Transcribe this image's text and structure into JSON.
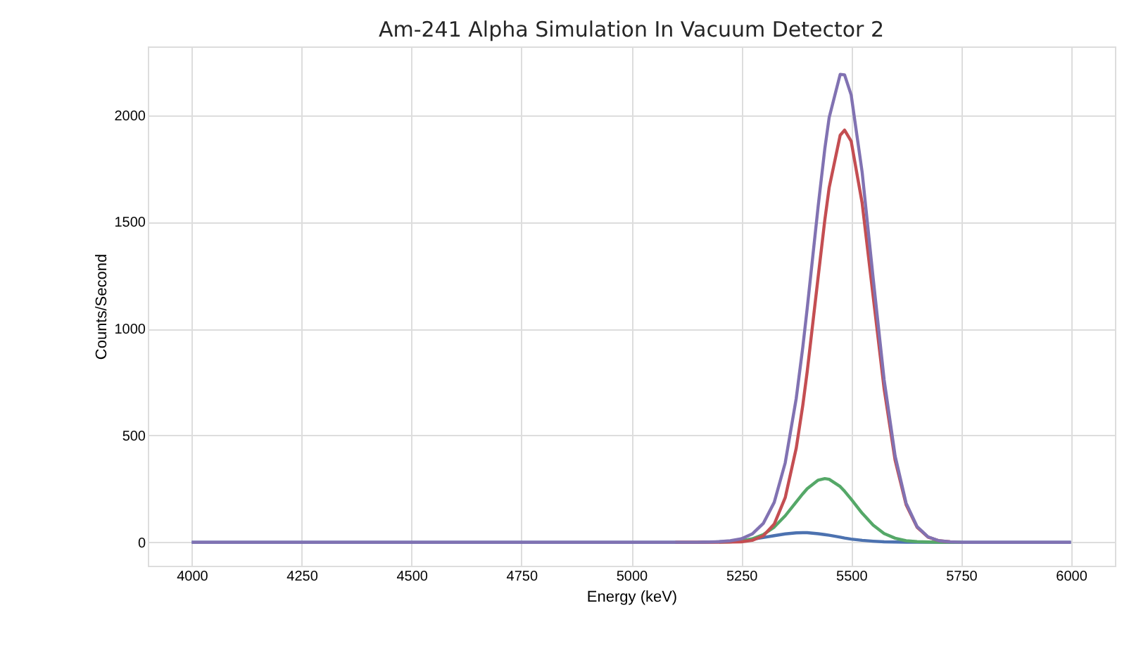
{
  "chart_data": {
    "type": "line",
    "title": "Am-241 Alpha Simulation In Vacuum Detector 2",
    "xlabel": "Energy (keV)",
    "ylabel": "Counts/Second",
    "x": [
      4000,
      5100,
      5150,
      5175,
      5200,
      5225,
      5250,
      5275,
      5300,
      5325,
      5350,
      5375,
      5390,
      5400,
      5425,
      5440,
      5450,
      5475,
      5485,
      5500,
      5525,
      5550,
      5575,
      5600,
      5625,
      5650,
      5675,
      5700,
      5725,
      5750,
      5800,
      6000
    ],
    "series": [
      {
        "color": "#4c72b0",
        "values": [
          0,
          0,
          0,
          1,
          2,
          4,
          8,
          14,
          22,
          31,
          39,
          44,
          45,
          45,
          40,
          36,
          33,
          24,
          20,
          15,
          9,
          5,
          2,
          1,
          0,
          0,
          0,
          0,
          0,
          0,
          0,
          0
        ]
      },
      {
        "color": "#55a868",
        "values": [
          null,
          null,
          null,
          null,
          1,
          2,
          6,
          16,
          36,
          71,
          124,
          189,
          227,
          251,
          291,
          298,
          295,
          261,
          239,
          202,
          136,
          80,
          41,
          19,
          7,
          3,
          1,
          0,
          0,
          0,
          null,
          null
        ]
      },
      {
        "color": "#c44e52",
        "values": [
          null,
          0,
          0,
          0,
          0,
          1,
          2,
          9,
          30,
          85,
          209,
          440,
          642,
          799,
          1244,
          1508,
          1661,
          1906,
          1930,
          1878,
          1588,
          1152,
          718,
          384,
          176,
          70,
          24,
          7,
          2,
          null,
          null,
          null
        ]
      },
      {
        "color": "#8172b2",
        "values": [
          0,
          0,
          0,
          1,
          3,
          7,
          16,
          39,
          88,
          187,
          372,
          673,
          914,
          1095,
          1575,
          1842,
          1989,
          2191,
          2189,
          2095,
          1733,
          1237,
          761,
          404,
          183,
          73,
          25,
          7,
          2,
          0,
          0,
          0
        ]
      }
    ],
    "xlim": [
      3900,
      6100
    ],
    "xticks": [
      4000,
      4250,
      4500,
      4750,
      5000,
      5250,
      5500,
      5750,
      6000
    ],
    "ylim": [
      -110,
      2322
    ],
    "yticks": [
      0,
      500,
      1000,
      1500,
      2000
    ],
    "grid": true,
    "legend": false,
    "marker": "none",
    "line_style": "solid"
  }
}
